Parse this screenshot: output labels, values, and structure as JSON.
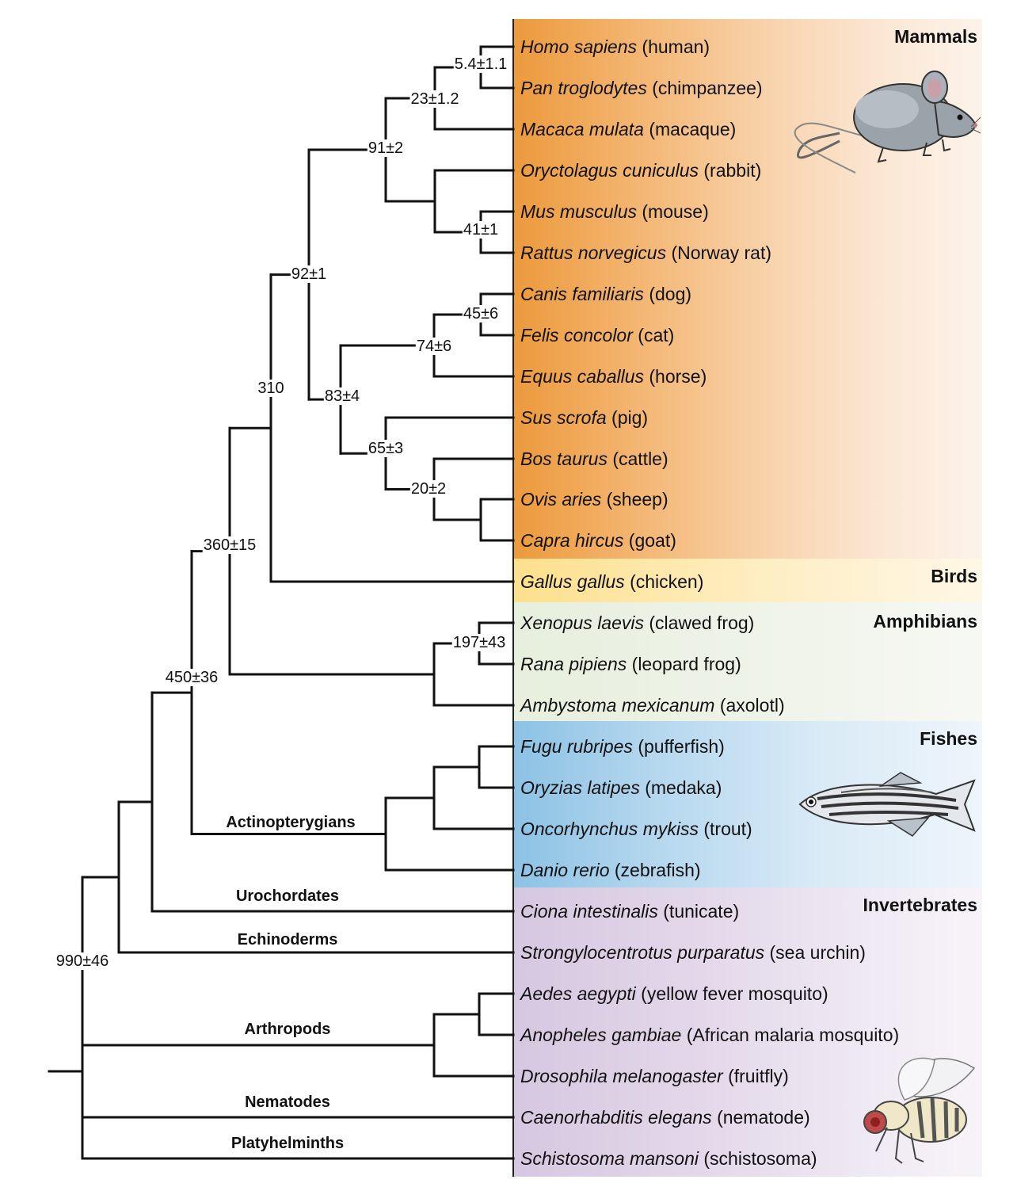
{
  "groups": {
    "mammals": "Mammals",
    "birds": "Birds",
    "amphibians": "Amphibians",
    "fishes": "Fishes",
    "invertebrates": "Invertebrates"
  },
  "species": [
    {
      "latin": "Homo sapiens",
      "common": "(human)"
    },
    {
      "latin": "Pan troglodytes",
      "common": "(chimpanzee)"
    },
    {
      "latin": "Macaca mulata",
      "common": "(macaque)"
    },
    {
      "latin": "Oryctolagus cuniculus",
      "common": "(rabbit)"
    },
    {
      "latin": "Mus musculus",
      "common": "(mouse)"
    },
    {
      "latin": "Rattus norvegicus",
      "common": "(Norway rat)"
    },
    {
      "latin": "Canis familiaris",
      "common": "(dog)"
    },
    {
      "latin": "Felis concolor",
      "common": "(cat)"
    },
    {
      "latin": "Equus caballus",
      "common": "(horse)"
    },
    {
      "latin": "Sus scrofa",
      "common": "(pig)"
    },
    {
      "latin": "Bos taurus",
      "common": "(cattle)"
    },
    {
      "latin": "Ovis aries",
      "common": "(sheep)"
    },
    {
      "latin": "Capra hircus",
      "common": "(goat)"
    },
    {
      "latin": "Gallus gallus",
      "common": "(chicken)"
    },
    {
      "latin": "Xenopus laevis",
      "common": "(clawed frog)"
    },
    {
      "latin": "Rana pipiens",
      "common": "(leopard frog)"
    },
    {
      "latin": "Ambystoma mexicanum",
      "common": "(axolotl)"
    },
    {
      "latin": "Fugu rubripes",
      "common": "(pufferfish)"
    },
    {
      "latin": "Oryzias latipes",
      "common": "(medaka)"
    },
    {
      "latin": "Oncorhynchus mykiss",
      "common": "(trout)"
    },
    {
      "latin": "Danio rerio",
      "common": "(zebrafish)"
    },
    {
      "latin": "Ciona intestinalis",
      "common": "(tunicate)"
    },
    {
      "latin": "Strongylocentrotus purparatus",
      "common": "(sea urchin)"
    },
    {
      "latin": "Aedes aegypti",
      "common": "(yellow fever mosquito)"
    },
    {
      "latin": "Anopheles gambiae",
      "common": "(African malaria mosquito)"
    },
    {
      "latin": "Drosophila melanogaster",
      "common": "(fruitfly)"
    },
    {
      "latin": "Caenorhabditis elegans",
      "common": "(nematode)"
    },
    {
      "latin": "Schistosoma mansoni",
      "common": "(schistosoma)"
    }
  ],
  "clades": {
    "actinopterygians": "Actinopterygians",
    "urochordates": "Urochordates",
    "echinoderms": "Echinoderms",
    "arthropods": "Arthropods",
    "nematodes": "Nematodes",
    "platyhelminths": "Platyhelminths"
  },
  "ages": {
    "human_chimp": "5.4±1.1",
    "primates": "23±1.2",
    "euarchontoglires": "91±2",
    "rodents": "41±1",
    "carnivores": "45±6",
    "laurasiatheria": "74±6",
    "placentals": "92±1",
    "ferungulates": "83±4",
    "artiodactyls": "65±3",
    "bovids": "20±2",
    "amniotes": "310",
    "frogs": "197±43",
    "tetrapods": "360±15",
    "vertebrates": "450±36",
    "bilaterians": "990±46"
  },
  "illustrations": [
    "mouse-illustration",
    "zebrafish-illustration",
    "fruitfly-illustration"
  ]
}
